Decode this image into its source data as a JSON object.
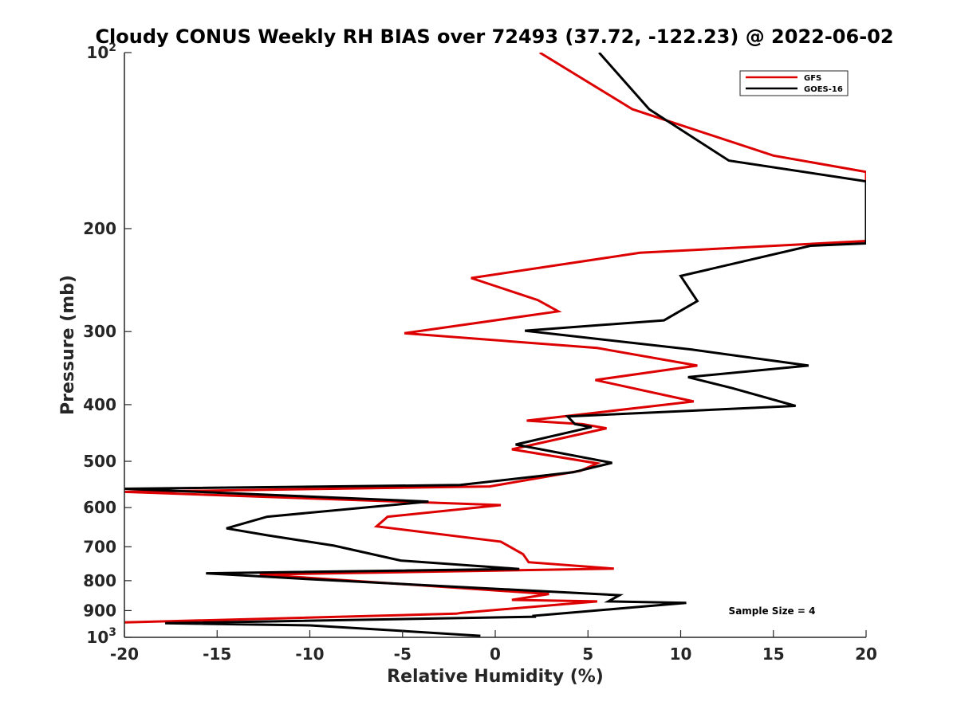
{
  "chart_data": {
    "type": "line",
    "title": "Cloudy CONUS Weekly RH BIAS over 72493 (37.72, -122.23) @ 2022-06-02",
    "xlabel": "Relative Humidity (%)",
    "ylabel": "Pressure (mb)",
    "xlim": [
      -20,
      20
    ],
    "ylim": [
      100,
      1000
    ],
    "yscale": "log",
    "y_reversed": true,
    "x_ticks": [
      "-20",
      "-15",
      "-10",
      "-5",
      "0",
      "5",
      "10",
      "15",
      "20"
    ],
    "y_ticks": [
      {
        "value": 100,
        "base": "10",
        "exp": "2"
      },
      {
        "value": 200,
        "label": "200"
      },
      {
        "value": 300,
        "label": "300"
      },
      {
        "value": 400,
        "label": "400"
      },
      {
        "value": 500,
        "label": "500"
      },
      {
        "value": 600,
        "label": "600"
      },
      {
        "value": 700,
        "label": "700"
      },
      {
        "value": 800,
        "label": "800"
      },
      {
        "value": 900,
        "label": "900"
      },
      {
        "value": 1000,
        "base": "10",
        "exp": "3"
      }
    ],
    "grid": false,
    "legend_position": "top-right",
    "annotation": "Sample Size = 4",
    "series": [
      {
        "name": "GFS",
        "color": "#dd0000",
        "points": [
          [
            2.4,
            100
          ],
          [
            7.4,
            125
          ],
          [
            15.0,
            150
          ],
          [
            20.0,
            160
          ],
          [
            20.0,
            210
          ],
          [
            7.8,
            220
          ],
          [
            -1.3,
            243
          ],
          [
            2.3,
            265
          ],
          [
            3.4,
            277
          ],
          [
            -4.9,
            302
          ],
          [
            5.5,
            320
          ],
          [
            10.9,
            343
          ],
          [
            5.4,
            363
          ],
          [
            10.7,
            395
          ],
          [
            1.7,
            426
          ],
          [
            4.7,
            432
          ],
          [
            6.0,
            439
          ],
          [
            0.9,
            477
          ],
          [
            5.5,
            504
          ],
          [
            4.6,
            519
          ],
          [
            -0.3,
            552
          ],
          [
            -20.0,
            564
          ],
          [
            0.3,
            594
          ],
          [
            -5.8,
            622
          ],
          [
            -6.4,
            646
          ],
          [
            0.3,
            686
          ],
          [
            1.5,
            721
          ],
          [
            1.8,
            744
          ],
          [
            6.4,
            763
          ],
          [
            -12.7,
            781
          ],
          [
            -10.8,
            788
          ],
          [
            2.9,
            843
          ],
          [
            0.9,
            863
          ],
          [
            5.5,
            868
          ],
          [
            -1.8,
            908
          ],
          [
            -2.1,
            911
          ],
          [
            -20.0,
            943
          ]
        ]
      },
      {
        "name": "GOES-16",
        "color": "#000000",
        "points": [
          [
            5.6,
            100
          ],
          [
            8.3,
            125
          ],
          [
            12.6,
            153
          ],
          [
            20.0,
            166
          ],
          [
            20.0,
            212
          ],
          [
            17.0,
            214
          ],
          [
            10.0,
            241
          ],
          [
            10.9,
            266
          ],
          [
            9.1,
            287
          ],
          [
            1.6,
            299
          ],
          [
            10.6,
            322
          ],
          [
            16.9,
            343
          ],
          [
            10.4,
            359
          ],
          [
            12.8,
            375
          ],
          [
            16.2,
            402
          ],
          [
            3.9,
            419
          ],
          [
            4.3,
            432
          ],
          [
            5.2,
            437
          ],
          [
            1.1,
            468
          ],
          [
            6.3,
            503
          ],
          [
            4.2,
            522
          ],
          [
            -1.9,
            549
          ],
          [
            -20.0,
            557
          ],
          [
            -3.6,
            586
          ],
          [
            -12.3,
            622
          ],
          [
            -14.5,
            651
          ],
          [
            -12.3,
            669
          ],
          [
            -8.7,
            697
          ],
          [
            -5.1,
            739
          ],
          [
            1.3,
            764
          ],
          [
            -15.6,
            777
          ],
          [
            -9.8,
            796
          ],
          [
            6.7,
            847
          ],
          [
            6.1,
            868
          ],
          [
            10.3,
            873
          ],
          [
            2.0,
            919
          ],
          [
            2.2,
            922
          ],
          [
            -17.8,
            946
          ],
          [
            -10.0,
            954
          ],
          [
            -5.5,
            973
          ],
          [
            -0.8,
            994
          ]
        ]
      }
    ]
  }
}
